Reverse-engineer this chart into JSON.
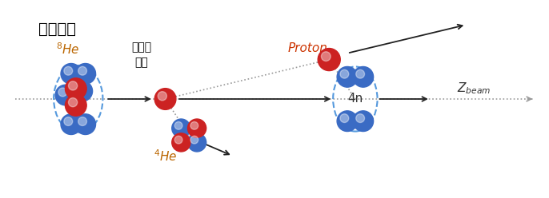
{
  "bg_color": "#ffffff",
  "title_text": "실험실계",
  "yang_label_line1": "양성자",
  "yang_label_line2": "표적",
  "proton_label": "Proton",
  "4n_label": "4n",
  "neutron_color": "#3a6bc4",
  "proton_color": "#cc2222",
  "orbit_color": "#5599dd",
  "dotted_line_color": "#999999",
  "arrow_color": "#222222",
  "title_color": "#000000",
  "he8_label_color": "#bb6600",
  "he4_label_color": "#bb6600",
  "proton_label_color": "#cc3300",
  "yang_label_color": "#000000",
  "4n_text_color": "#333333",
  "zbeam_color": "#333333"
}
